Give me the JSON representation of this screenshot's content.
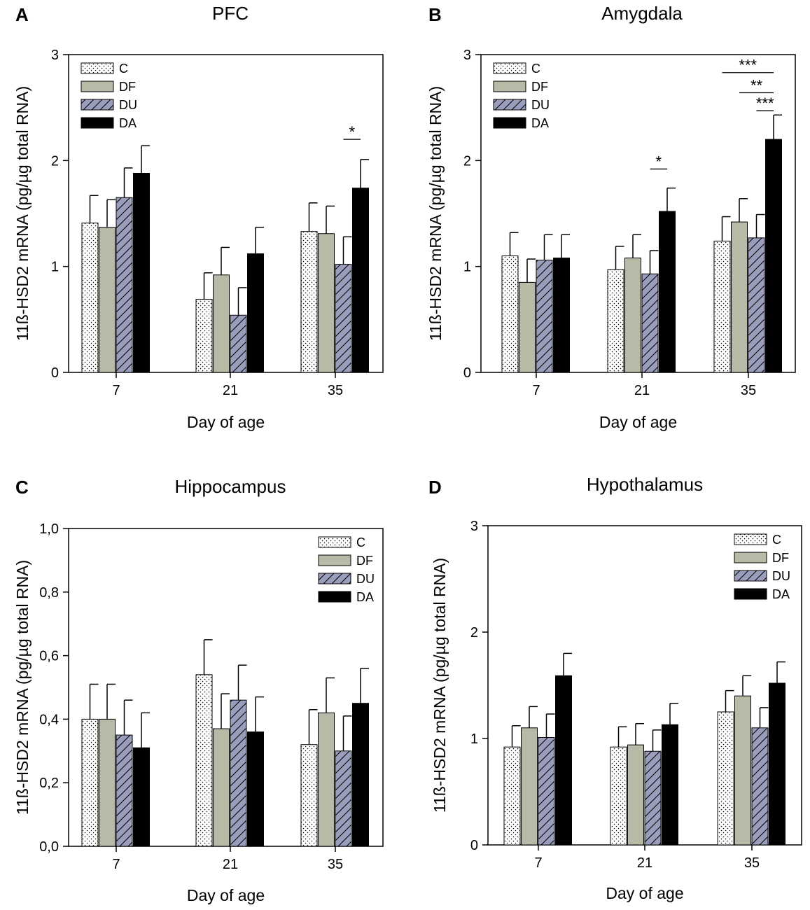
{
  "chart_data": [
    {
      "type": "bar",
      "panel_label": "A",
      "title": "PFC",
      "xlabel": "Day of age",
      "ylabel": "11ß-HSD2 mRNA (pg/µg total RNA)",
      "ylim": [
        0,
        3
      ],
      "yticks": [
        0,
        1,
        2,
        3
      ],
      "ytick_labels": [
        "0",
        "1",
        "2",
        "3"
      ],
      "categories": [
        "7",
        "21",
        "35"
      ],
      "legend_position": "top-left",
      "series": [
        {
          "name": "C",
          "values": [
            1.41,
            0.69,
            1.33
          ],
          "errors": [
            0.26,
            0.25,
            0.27
          ]
        },
        {
          "name": "DF",
          "values": [
            1.37,
            0.92,
            1.31
          ],
          "errors": [
            0.26,
            0.26,
            0.26
          ]
        },
        {
          "name": "DU",
          "values": [
            1.65,
            0.54,
            1.02
          ],
          "errors": [
            0.28,
            0.26,
            0.26
          ]
        },
        {
          "name": "DA",
          "values": [
            1.88,
            1.12,
            1.74
          ],
          "errors": [
            0.26,
            0.25,
            0.27
          ]
        }
      ],
      "annotations": [
        {
          "label": "*",
          "category": 2,
          "from": 2,
          "to": 3,
          "y": 2.2
        }
      ]
    },
    {
      "type": "bar",
      "panel_label": "B",
      "title": "Amygdala",
      "xlabel": "Day of age",
      "ylabel": "11ß-HSD2 mRNA (pg/µg total RNA)",
      "ylim": [
        0,
        3
      ],
      "yticks": [
        0,
        1,
        2,
        3
      ],
      "ytick_labels": [
        "0",
        "1",
        "2",
        "3"
      ],
      "categories": [
        "7",
        "21",
        "35"
      ],
      "legend_position": "top-left",
      "series": [
        {
          "name": "C",
          "values": [
            1.1,
            0.97,
            1.24
          ],
          "errors": [
            0.22,
            0.22,
            0.23
          ]
        },
        {
          "name": "DF",
          "values": [
            0.85,
            1.08,
            1.42
          ],
          "errors": [
            0.22,
            0.22,
            0.22
          ]
        },
        {
          "name": "DU",
          "values": [
            1.06,
            0.93,
            1.27
          ],
          "errors": [
            0.24,
            0.22,
            0.22
          ]
        },
        {
          "name": "DA",
          "values": [
            1.08,
            1.52,
            2.2
          ],
          "errors": [
            0.22,
            0.22,
            0.23
          ]
        }
      ],
      "annotations": [
        {
          "label": "*",
          "category": 1,
          "from": 2,
          "to": 3,
          "y": 1.92
        },
        {
          "label": "***",
          "category": 2,
          "from": 0,
          "to": 3,
          "y": 2.83
        },
        {
          "label": "**",
          "category": 2,
          "from": 1,
          "to": 3,
          "y": 2.64
        },
        {
          "label": "***",
          "category": 2,
          "from": 2,
          "to": 3,
          "y": 2.47
        }
      ]
    },
    {
      "type": "bar",
      "panel_label": "C",
      "title": "Hippocampus",
      "xlabel": "Day of age",
      "ylabel": "11ß-HSD2 mRNA (pg/µg total RNA)",
      "ylim": [
        0,
        1
      ],
      "yticks": [
        0,
        0.2,
        0.4,
        0.6,
        0.8,
        1.0
      ],
      "ytick_labels": [
        "0,0",
        "0,2",
        "0,4",
        "0,6",
        "0,8",
        "1,0"
      ],
      "categories": [
        "7",
        "21",
        "35"
      ],
      "legend_position": "top-right",
      "series": [
        {
          "name": "C",
          "values": [
            0.4,
            0.54,
            0.32
          ],
          "errors": [
            0.11,
            0.11,
            0.11
          ]
        },
        {
          "name": "DF",
          "values": [
            0.4,
            0.37,
            0.42
          ],
          "errors": [
            0.11,
            0.11,
            0.11
          ]
        },
        {
          "name": "DU",
          "values": [
            0.35,
            0.46,
            0.3
          ],
          "errors": [
            0.11,
            0.11,
            0.11
          ]
        },
        {
          "name": "DA",
          "values": [
            0.31,
            0.36,
            0.45
          ],
          "errors": [
            0.11,
            0.11,
            0.11
          ]
        }
      ],
      "annotations": []
    },
    {
      "type": "bar",
      "panel_label": "D",
      "title": "Hypothalamus",
      "xlabel": "Day of age",
      "ylabel": "11ß-HSD2 mRNA (pg/µg total RNA)",
      "ylim": [
        0,
        3
      ],
      "yticks": [
        0,
        1,
        2,
        3
      ],
      "ytick_labels": [
        "0",
        "1",
        "2",
        "3"
      ],
      "categories": [
        "7",
        "21",
        "35"
      ],
      "legend_position": "top-right",
      "series": [
        {
          "name": "C",
          "values": [
            0.92,
            0.92,
            1.25
          ],
          "errors": [
            0.2,
            0.19,
            0.2
          ]
        },
        {
          "name": "DF",
          "values": [
            1.1,
            0.94,
            1.4
          ],
          "errors": [
            0.2,
            0.2,
            0.19
          ]
        },
        {
          "name": "DU",
          "values": [
            1.01,
            0.88,
            1.1
          ],
          "errors": [
            0.22,
            0.2,
            0.19
          ]
        },
        {
          "name": "DA",
          "values": [
            1.59,
            1.13,
            1.52
          ],
          "errors": [
            0.21,
            0.2,
            0.2
          ]
        }
      ],
      "annotations": []
    }
  ],
  "colors": {
    "C": "#ffffff",
    "DF": "#b8baa8",
    "DU": "#9a9dbb",
    "DA": "#000000",
    "axis": "#000000"
  }
}
